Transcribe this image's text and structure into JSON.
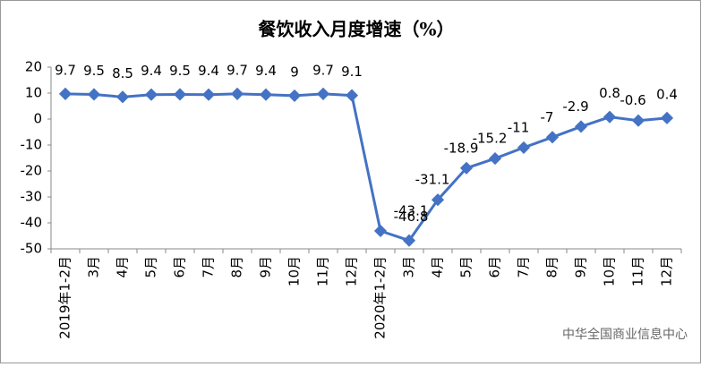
{
  "chart_data": {
    "type": "line",
    "title": "餐饮收入月度增速（%）",
    "categories": [
      "2019年1-2月",
      "3月",
      "4月",
      "5月",
      "6月",
      "7月",
      "8月",
      "9月",
      "10月",
      "11月",
      "12月",
      "2020年1-2月",
      "3月",
      "4月",
      "5月",
      "6月",
      "7月",
      "8月",
      "9月",
      "10月",
      "11月",
      "12月"
    ],
    "series": [
      {
        "name": "餐饮收入",
        "color": "#4472c4",
        "values": [
          9.7,
          9.5,
          8.5,
          9.4,
          9.5,
          9.4,
          9.7,
          9.4,
          9,
          9.7,
          9.1,
          -43.1,
          -46.8,
          -31.1,
          -18.9,
          -15.2,
          -11,
          -7,
          -2.9,
          0.8,
          -0.6,
          0.4
        ]
      }
    ],
    "ylim": [
      -50,
      20
    ],
    "yticks": [
      -50,
      -40,
      -30,
      -20,
      -10,
      0,
      10,
      20
    ],
    "grid": false,
    "watermark": "中华全国商业信息中心"
  }
}
